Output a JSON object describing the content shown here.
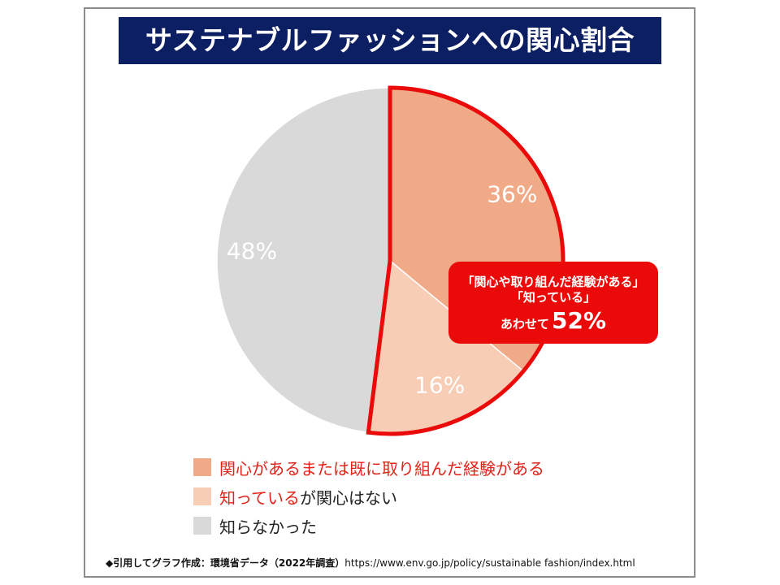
{
  "title": "サステナブルファッションへの関心割合",
  "chart_data": {
    "type": "pie",
    "start_angle_deg": 0,
    "direction": "clockwise",
    "categories": [
      "関心があるまたは既に取り組んだ経験がある",
      "知っているが関心はない",
      "知らなかった"
    ],
    "values": [
      36,
      16,
      48
    ],
    "value_labels": [
      "36%",
      "16%",
      "48%"
    ],
    "colors": [
      "#f1aa87",
      "#f8cdb6",
      "#d9d9d9"
    ],
    "label_color": "#ffffff",
    "highlight": {
      "slices": [
        0,
        1
      ],
      "outline_color": "#ea0a0a"
    }
  },
  "callout": {
    "line1": "「関心や取り組んだ経験がある」",
    "line2": "「知っている」",
    "prefix": "あわせて",
    "total": "52%"
  },
  "legend": [
    {
      "highlight": "関心があるまたは既に取り組んだ経験がある",
      "rest": "",
      "color": "#f1aa87"
    },
    {
      "highlight": "知っている",
      "rest": "が関心はない",
      "color": "#f8cdb6"
    },
    {
      "highlight": "",
      "rest": "知らなかった",
      "color": "#d9d9d9"
    }
  ],
  "source": {
    "label": "◆引用してグラフ作成：環境省データ（2022年調査）",
    "url": "https://www.env.go.jp/policy/sustainable fashion/index.html"
  }
}
